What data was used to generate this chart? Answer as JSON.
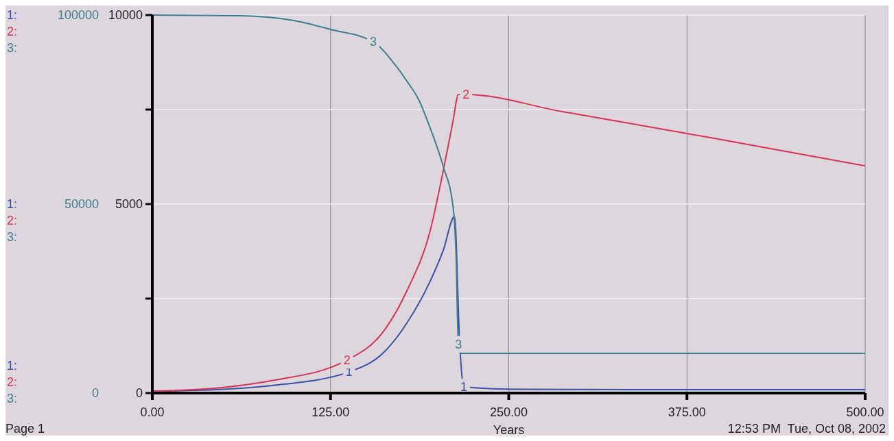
{
  "chart_data": {
    "type": "line",
    "xlabel": "Years",
    "xlim": [
      0,
      500
    ],
    "xticks": [
      {
        "value": 0,
        "label": "0.00"
      },
      {
        "value": 125,
        "label": "125.00"
      },
      {
        "value": 250,
        "label": "250.00"
      },
      {
        "value": 375,
        "label": "375.00"
      },
      {
        "value": 500,
        "label": "500.00"
      }
    ],
    "ylim": [
      0,
      10000
    ],
    "yticks": [
      0,
      {
        "value": 2500,
        "label": null
      },
      5000,
      {
        "value": 7500,
        "label": null
      },
      10000
    ],
    "y2lim": [
      0,
      100000
    ],
    "y2ticks": [
      0,
      50000,
      100000
    ],
    "grid": true,
    "legend": false,
    "marker": "none",
    "line_style": "solid",
    "series": [
      {
        "name": "1",
        "color": "#3a4fa8",
        "x": [
          0,
          50,
          84,
          138,
          163,
          179,
          195,
          204,
          212,
          215.6,
          218.5,
          260,
          375,
          500
        ],
        "values": [
          50,
          100,
          200,
          560,
          1100,
          1880,
          2970,
          3770,
          4670,
          1290,
          160,
          100,
          90,
          90
        ]
      },
      {
        "name": "2",
        "color": "#d8325a",
        "x": [
          0,
          50,
          84,
          136.5,
          163.5,
          179,
          195,
          204,
          211,
          214.7,
          220,
          287,
          400,
          500
        ],
        "values": [
          50,
          150,
          330,
          870,
          1700,
          2740,
          4310,
          5870,
          7210,
          7900,
          7900,
          7450,
          6700,
          6010
        ]
      },
      {
        "name": "3",
        "color": "#3f7f8c",
        "axis": "y2",
        "x": [
          0,
          62,
          100,
          125,
          155,
          170,
          179,
          187,
          195,
          204,
          211,
          213,
          214.7,
          217,
          300,
          500
        ],
        "values": [
          100000,
          99800,
          98500,
          96200,
          92900,
          87000,
          82300,
          77500,
          70000,
          60000,
          49100,
          37000,
          12900,
          10500,
          10500,
          10500
        ]
      }
    ],
    "annotations": [
      "1:",
      "2:",
      "3:",
      "Page 1",
      "12:53 PM  Tue, Oct 08, 2002"
    ]
  }
}
